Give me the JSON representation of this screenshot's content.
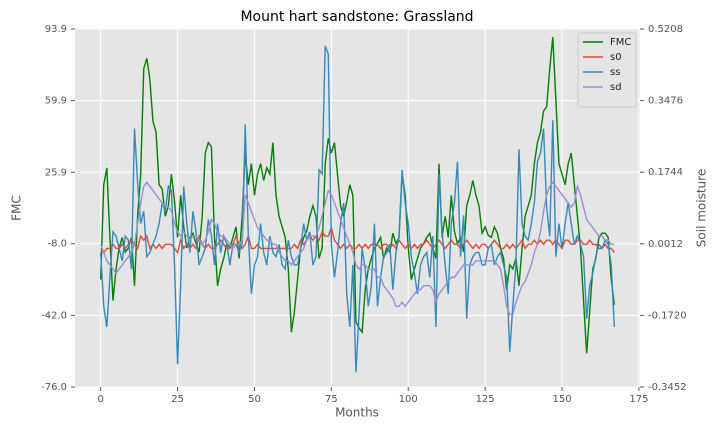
{
  "chart_data": {
    "type": "line",
    "title": "Mount hart sandstone: Grassland",
    "xlabel": "Months",
    "ylabel": "FMC",
    "y2label": "Soil moisture",
    "x": [
      0,
      1,
      2,
      3,
      4,
      5,
      6,
      7,
      8,
      9,
      10,
      11,
      12,
      13,
      14,
      15,
      16,
      17,
      18,
      19,
      20,
      21,
      22,
      23,
      24,
      25,
      26,
      27,
      28,
      29,
      30,
      31,
      32,
      33,
      34,
      35,
      36,
      37,
      38,
      39,
      40,
      41,
      42,
      43,
      44,
      45,
      46,
      47,
      48,
      49,
      50,
      51,
      52,
      53,
      54,
      55,
      56,
      57,
      58,
      59,
      60,
      61,
      62,
      63,
      64,
      65,
      66,
      67,
      68,
      69,
      70,
      71,
      72,
      73,
      74,
      75,
      76,
      77,
      78,
      79,
      80,
      81,
      82,
      83,
      84,
      85,
      86,
      87,
      88,
      89,
      90,
      91,
      92,
      93,
      94,
      95,
      96,
      97,
      98,
      99,
      100,
      101,
      102,
      103,
      104,
      105,
      106,
      107,
      108,
      109,
      110,
      111,
      112,
      113,
      114,
      115,
      116,
      117,
      118,
      119,
      120,
      121,
      122,
      123,
      124,
      125,
      126,
      127,
      128,
      129,
      130,
      131,
      132,
      133,
      134,
      135,
      136,
      137,
      138,
      139,
      140,
      141,
      142,
      143,
      144,
      145,
      146,
      147,
      148,
      149,
      150,
      151,
      152,
      153,
      154,
      155,
      156,
      157,
      158,
      159,
      160,
      161,
      162,
      163,
      164,
      165,
      166,
      167
    ],
    "xlim": [
      -8.35,
      175.35
    ],
    "xticks": [
      0,
      25,
      50,
      75,
      100,
      125,
      150,
      175
    ],
    "ylim": [
      -76,
      93.9
    ],
    "yticks": [
      {
        "value": -76,
        "label": "-76.0"
      },
      {
        "value": -42,
        "label": "-42.0"
      },
      {
        "value": -8,
        "label": "-8.0"
      },
      25.9,
      59.9,
      93.9
    ],
    "y2lim": [
      -0.3452,
      0.5208
    ],
    "y2ticks": [
      -0.3452,
      {
        "value": -0.172,
        "label": "-0.1720"
      },
      0.0012,
      0.1744,
      0.3476,
      0.5208
    ],
    "grid": true,
    "legend": "upper right",
    "series": [
      {
        "name": "FMC",
        "color": "#008000",
        "values": [
          -25,
          20,
          28,
          -5,
          -35,
          -20,
          -10,
          -5,
          -12,
          -10,
          -5,
          -28,
          5,
          25,
          75,
          80,
          70,
          50,
          45,
          20,
          18,
          5,
          10,
          25,
          12,
          -5,
          15,
          0,
          -10,
          -5,
          -3,
          -8,
          -12,
          5,
          35,
          40,
          38,
          -5,
          -28,
          -20,
          -15,
          -8,
          -10,
          -5,
          0,
          -15,
          5,
          35,
          20,
          30,
          15,
          25,
          30,
          22,
          28,
          25,
          40,
          15,
          5,
          0,
          -5,
          -20,
          -50,
          -40,
          -25,
          -10,
          -5,
          -2,
          5,
          10,
          5,
          -15,
          -10,
          30,
          42,
          35,
          40,
          25,
          10,
          5,
          12,
          20,
          15,
          -45,
          -48,
          -50,
          -30,
          -20,
          -15,
          -10,
          -8,
          -5,
          -15,
          -10,
          -12,
          -3,
          -8,
          -5,
          25,
          15,
          -10,
          -25,
          -20,
          -15,
          -10,
          -8,
          -5,
          -3,
          -10,
          -15,
          30,
          -5,
          5,
          -5,
          15,
          -2,
          -8,
          -5,
          -12,
          10,
          15,
          22,
          15,
          10,
          -3,
          0,
          -4,
          -5,
          0,
          -3,
          -10,
          -15,
          -30,
          -18,
          -20,
          -15,
          -28,
          -10,
          5,
          10,
          15,
          30,
          40,
          45,
          55,
          57,
          75,
          90,
          60,
          30,
          25,
          20,
          30,
          35,
          20,
          5,
          -10,
          -35,
          -60,
          -40,
          -20,
          -15,
          -5,
          -3,
          -3,
          -5,
          -25,
          -37
        ]
      },
      {
        "name": "s0",
        "color": "#E24A33",
        "axis": "y2",
        "values": [
          -0.01,
          -0.02,
          -0.01,
          -0.01,
          0,
          -0.01,
          -0.01,
          0,
          -0.01,
          0,
          0.01,
          0,
          -0.01,
          0.02,
          0.01,
          0.02,
          -0.01,
          0,
          -0.01,
          0,
          -0.01,
          0,
          0,
          0,
          -0.01,
          -0.02,
          0.01,
          -0.01,
          0,
          -0.01,
          0,
          -0.01,
          0.02,
          0,
          -0.01,
          0,
          -0.01,
          -0.01,
          0,
          0.01,
          0,
          -0.01,
          -0.01,
          0,
          0.02,
          0,
          -0.01,
          0,
          0.02,
          -0.01,
          -0.01,
          0,
          -0.01,
          -0.01,
          -0.01,
          -0.01,
          -0.01,
          -0.01,
          -0.01,
          -0.01,
          -0.01,
          -0.01,
          -0.01,
          0,
          -0.01,
          0.01,
          0,
          0.01,
          0.02,
          0.01,
          0.02,
          0.01,
          0.03,
          0.02,
          0.02,
          0.04,
          0.01,
          0,
          -0.01,
          0,
          -0.01,
          0,
          -0.01,
          -0.01,
          0,
          -0.01,
          0,
          -0.01,
          0,
          0,
          0,
          -0.01,
          0,
          0,
          -0.01,
          0,
          -0.01,
          0.01,
          0,
          -0.01,
          0,
          -0.01,
          0,
          -0.01,
          0,
          0,
          0.01,
          0,
          -0.01,
          0,
          0.01,
          0,
          -0.01,
          0,
          0.01,
          0,
          0,
          -0.01,
          0,
          0.01,
          0,
          -0.01,
          0,
          -0.01,
          0,
          0,
          -0.01,
          0,
          0.01,
          0,
          -0.01,
          -0.01,
          0,
          -0.01,
          0,
          -0.01,
          0,
          0.01,
          -0.01,
          0,
          0,
          0.01,
          0,
          0.01,
          0,
          0.01,
          0.01,
          0,
          0.01,
          0,
          -0.01,
          0.01,
          0.01,
          0,
          0,
          0.01,
          0.01,
          0,
          0,
          0.01,
          0,
          0,
          -0.01,
          -0.01,
          0,
          -0.01,
          -0.01,
          -0.02
        ]
      },
      {
        "name": "ss",
        "color": "#348ABD",
        "axis": "y2",
        "values": [
          -0.02,
          -0.15,
          -0.2,
          -0.08,
          0.03,
          0.02,
          -0.01,
          -0.04,
          0.02,
          0.01,
          -0.06,
          0.28,
          0.15,
          0.05,
          0.08,
          -0.03,
          -0.02,
          0.0,
          0.02,
          0.05,
          0.1,
          0.08,
          0.14,
          0.13,
          -0.05,
          -0.29,
          -0.1,
          0.14,
          0.05,
          -0.02,
          0.08,
          0.03,
          -0.05,
          -0.03,
          -0.01,
          0.06,
          0.02,
          -0.05,
          0.05,
          -0.02,
          0.02,
          0.0,
          -0.05,
          0.0,
          0.0,
          -0.02,
          0.0,
          0.29,
          0.02,
          -0.12,
          -0.05,
          -0.03,
          0.05,
          -0.02,
          -0.05,
          0.02,
          -0.02,
          -0.03,
          0.0,
          -0.05,
          -0.06,
          0.01,
          -0.03,
          -0.05,
          -0.05,
          -0.01,
          0.05,
          0.01,
          0.03,
          -0.05,
          -0.03,
          0.18,
          0.17,
          0.48,
          0.46,
          0.0,
          -0.08,
          -0.02,
          0.05,
          0.1,
          -0.12,
          -0.2,
          -0.05,
          -0.31,
          -0.17,
          -0.01,
          -0.06,
          -0.15,
          -0.1,
          0.05,
          -0.15,
          -0.08,
          -0.03,
          -0.02,
          0.0,
          -0.11,
          -0.02,
          0.02,
          0.18,
          0.1,
          0.05,
          -0.03,
          -0.07,
          -0.12,
          -0.05,
          -0.03,
          -0.02,
          -0.08,
          0.02,
          -0.2,
          0.17,
          0.03,
          -0.05,
          -0.12,
          0.05,
          0.1,
          0.2,
          -0.03,
          0.07,
          -0.18,
          -0.05,
          -0.03,
          -0.02,
          -0.02,
          -0.05,
          -0.05,
          -0.01,
          0.0,
          -0.05,
          -0.03,
          -0.02,
          -0.05,
          -0.08,
          -0.26,
          -0.15,
          -0.05,
          0.23,
          0.05,
          0.02,
          0.01,
          0.05,
          0.1,
          0.2,
          0.22,
          0.28,
          0.09,
          0.02,
          0.3,
          -0.03,
          0.05,
          -0.01,
          0.05,
          0.1,
          0.05,
          0.0,
          0.02,
          0.0,
          -0.03,
          -0.18,
          -0.1,
          -0.07,
          -0.03,
          0.0,
          -0.01,
          0.01,
          0.0,
          -0.05,
          -0.2
        ]
      },
      {
        "name": "sd",
        "color": "#988ED5",
        "axis": "y2",
        "values": [
          0.0,
          -0.02,
          -0.04,
          -0.05,
          -0.06,
          -0.07,
          -0.06,
          -0.05,
          -0.04,
          -0.03,
          -0.02,
          0.0,
          0.05,
          0.1,
          0.14,
          0.15,
          0.14,
          0.13,
          0.12,
          0.11,
          0.1,
          0.09,
          0.09,
          0.08,
          0.05,
          0.03,
          0.02,
          0.03,
          0.02,
          0.01,
          0.02,
          0.02,
          0.01,
          0.0,
          0.01,
          0.03,
          0.06,
          0.05,
          0.03,
          0.02,
          0.02,
          0.01,
          0.0,
          -0.01,
          0.0,
          0.0,
          0.01,
          0.12,
          0.1,
          0.08,
          0.06,
          0.04,
          0.03,
          0.02,
          0.01,
          0.01,
          0.0,
          0.0,
          -0.02,
          -0.03,
          -0.04,
          -0.04,
          -0.05,
          -0.04,
          -0.03,
          -0.02,
          -0.01,
          0.01,
          0.02,
          0.02,
          0.02,
          0.04,
          0.07,
          0.1,
          0.13,
          0.12,
          0.1,
          0.08,
          0.06,
          0.04,
          0.02,
          0.0,
          -0.02,
          -0.05,
          -0.06,
          -0.05,
          -0.05,
          -0.06,
          -0.06,
          -0.06,
          -0.08,
          -0.08,
          -0.1,
          -0.11,
          -0.12,
          -0.13,
          -0.15,
          -0.15,
          -0.14,
          -0.15,
          -0.14,
          -0.13,
          -0.12,
          -0.11,
          -0.11,
          -0.1,
          -0.1,
          -0.1,
          -0.11,
          -0.14,
          -0.12,
          -0.11,
          -0.1,
          -0.09,
          -0.08,
          -0.08,
          -0.07,
          -0.06,
          -0.05,
          -0.05,
          -0.05,
          -0.05,
          -0.04,
          -0.04,
          -0.04,
          -0.04,
          -0.04,
          -0.04,
          -0.04,
          -0.05,
          -0.06,
          -0.1,
          -0.15,
          -0.17,
          -0.17,
          -0.14,
          -0.12,
          -0.1,
          -0.09,
          -0.07,
          -0.05,
          -0.02,
          0.0,
          0.03,
          0.08,
          0.12,
          0.14,
          0.15,
          0.14,
          0.13,
          0.12,
          0.11,
          0.1,
          0.09,
          0.1,
          0.14,
          0.12,
          0.09,
          0.06,
          0.05,
          0.04,
          0.03,
          0.02,
          0.02,
          0.01,
          0.01,
          0.0,
          0.0
        ]
      }
    ]
  }
}
